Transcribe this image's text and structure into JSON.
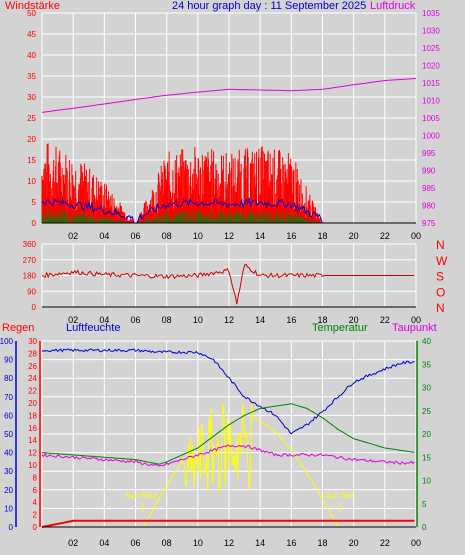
{
  "panel1": {
    "title": "24 hour graph day : 11 September 2025",
    "left_label": "Windstärke",
    "right_label": "Luftdruck",
    "left_ticks": [
      "50",
      "45",
      "40",
      "35",
      "30",
      "25",
      "20",
      "15",
      "10",
      "5",
      "0"
    ],
    "right_ticks": [
      "1035",
      "1030",
      "1025",
      "1020",
      "1015",
      "1010",
      "1005",
      "1000",
      "995",
      "990",
      "985",
      "980",
      "975"
    ],
    "x_ticks": [
      "02",
      "04",
      "06",
      "08",
      "10",
      "12",
      "14",
      "16",
      "18",
      "20",
      "22",
      "00"
    ]
  },
  "panel2": {
    "left_ticks": [
      "360",
      "270",
      "180",
      "90",
      "0"
    ],
    "compass": [
      "N",
      "W",
      "S",
      "O",
      "N"
    ],
    "x_ticks": [
      "02",
      "04",
      "06",
      "08",
      "10",
      "12",
      "14",
      "16",
      "18",
      "20",
      "22",
      "00"
    ]
  },
  "panel3": {
    "labels": {
      "regen": "Regen",
      "luftfeuchte": "Luftfeuchte",
      "temperatur": "Temperatur",
      "taupunkt": "Taupunkt"
    },
    "humidity_ticks": [
      "100",
      "90",
      "80",
      "70",
      "60",
      "50",
      "40",
      "30",
      "20",
      "10",
      "0"
    ],
    "rain_ticks": [
      "30",
      "28",
      "26",
      "24",
      "22",
      "20",
      "18",
      "16",
      "14",
      "12",
      "10",
      "8",
      "6",
      "4",
      "2",
      "0"
    ],
    "temp_ticks": [
      "40",
      "35",
      "30",
      "25",
      "20",
      "15",
      "10",
      "5",
      "0"
    ],
    "x_ticks": [
      "02",
      "04",
      "06",
      "08",
      "10",
      "12",
      "14",
      "16",
      "18",
      "20",
      "22",
      "00"
    ],
    "sun_rise": "Sun Rise",
    "sun_set": "Sun Set"
  },
  "colors": {
    "wind": "#ff0000",
    "gust": "#0000cc",
    "avg": "#008000",
    "pressure": "#e000e0",
    "humidity": "#0000cc",
    "temperature": "#008000",
    "dewpoint": "#e000e0",
    "solar": "#ffff00",
    "rain": "#ff0000",
    "grid": "#ffffff"
  },
  "chart_data": [
    {
      "type": "line",
      "x": [
        0,
        2,
        4,
        6,
        8,
        10,
        12,
        14,
        16,
        18,
        20,
        22,
        24
      ],
      "series": [
        {
          "name": "Luftdruck",
          "values": [
            1006.6,
            1007.8,
            1009.0,
            1010.3,
            1011.5,
            1012.4,
            1013.2,
            1013.0,
            1012.8,
            1013.2,
            1014.5,
            1015.7,
            1016.3
          ]
        },
        {
          "name": "Windstärke",
          "values": [
            12,
            10,
            6,
            0,
            10,
            11,
            10,
            11,
            10,
            0,
            0,
            0,
            0
          ]
        }
      ],
      "ylim_left": [
        0,
        50
      ],
      "ylim_right": [
        975,
        1035
      ]
    },
    {
      "type": "line",
      "x": [
        0,
        2,
        4,
        6,
        8,
        10,
        12,
        12.5,
        13,
        14,
        16,
        18,
        20,
        22,
        24
      ],
      "values": [
        180,
        200,
        185,
        180,
        175,
        180,
        210,
        20,
        240,
        180,
        180,
        180,
        180,
        180,
        180
      ],
      "ylim": [
        0,
        360
      ]
    },
    {
      "type": "line",
      "x": [
        0,
        2,
        4,
        6,
        7.5,
        8,
        10,
        11,
        12,
        13,
        14,
        15,
        16,
        17,
        18,
        19,
        20,
        22,
        23,
        24
      ],
      "series": [
        {
          "name": "Luftfeuchte",
          "values": [
            95,
            95,
            95,
            95,
            94,
            94,
            94,
            90,
            80,
            70,
            65,
            60,
            50,
            55,
            62,
            70,
            78,
            85,
            88,
            89
          ]
        },
        {
          "name": "Temperatur",
          "values": [
            16,
            15.5,
            15,
            14.5,
            13.5,
            14,
            17,
            19.5,
            22,
            24,
            25.5,
            26,
            26.5,
            25.5,
            23.5,
            21,
            19,
            17,
            16.5,
            16
          ]
        },
        {
          "name": "Taupunkt",
          "values": [
            15.5,
            15,
            14.5,
            14,
            13,
            13.5,
            15.5,
            16.5,
            17.5,
            17.5,
            16.5,
            15.5,
            15.5,
            15.5,
            15.5,
            15,
            14.5,
            14,
            13.8,
            13.8
          ]
        },
        {
          "name": "Regen",
          "values": [
            0,
            1,
            1,
            1,
            1,
            1,
            1,
            1,
            1,
            1,
            1,
            1,
            1,
            1,
            1,
            1,
            1,
            1,
            1,
            1
          ]
        }
      ],
      "ylim_humidity": [
        0,
        100
      ],
      "ylim_rain": [
        0,
        30
      ],
      "ylim_temp": [
        0,
        40
      ]
    }
  ]
}
